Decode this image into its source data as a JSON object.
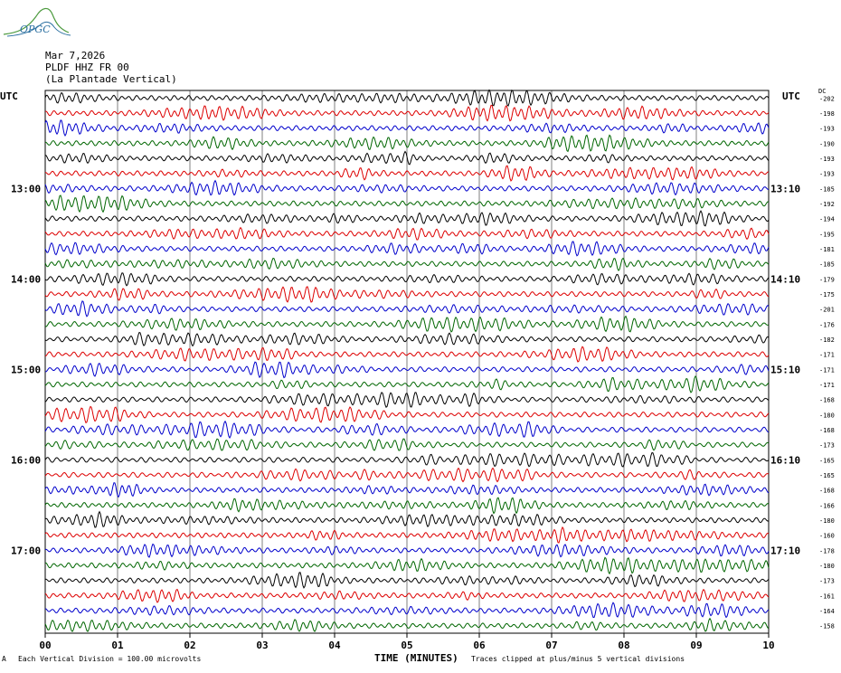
{
  "logo": {
    "text": "OPGC"
  },
  "header": {
    "date": "Mar 7,2026",
    "station": "PLDF HHZ FR 00",
    "location": "(La Plantade Vertical)"
  },
  "utc_left": "UTC",
  "utc_right": "UTC",
  "dc_label": "DC",
  "xlabel": "TIME (MINUTES)",
  "footer_left": "Each Vertical Division =  100.00 microvolts",
  "footer_right": "Traces clipped at plus/minus 5 vertical divisions",
  "footer_mark": "A",
  "colors": {
    "trace_cycle": [
      "#000000",
      "#dd0000",
      "#0000cc",
      "#006600"
    ],
    "grid": "#000000"
  },
  "chart_data": {
    "type": "line",
    "title": "PLDF HHZ FR 00 (La Plantade Vertical)",
    "xlabel": "TIME (MINUTES)",
    "x_ticks": [
      "00",
      "01",
      "02",
      "03",
      "04",
      "05",
      "06",
      "07",
      "08",
      "09",
      "10"
    ],
    "xlim": [
      0,
      10
    ],
    "grid": true,
    "trace_count": 36,
    "left_time_labels": [
      {
        "trace": 6,
        "label": "13:00"
      },
      {
        "trace": 12,
        "label": "14:00"
      },
      {
        "trace": 18,
        "label": "15:00"
      },
      {
        "trace": 24,
        "label": "16:00"
      },
      {
        "trace": 30,
        "label": "17:00"
      }
    ],
    "right_time_labels": [
      {
        "trace": 6,
        "label": "13:10"
      },
      {
        "trace": 12,
        "label": "14:10"
      },
      {
        "trace": 18,
        "label": "15:10"
      },
      {
        "trace": 24,
        "label": "16:10"
      },
      {
        "trace": 30,
        "label": "17:10"
      }
    ],
    "dc_offsets": [
      -202,
      -198,
      -193,
      -190,
      -193,
      -193,
      -185,
      -192,
      -194,
      -195,
      -181,
      -185,
      -179,
      -175,
      -201,
      -176,
      -182,
      -171,
      -171,
      -171,
      -168,
      -180,
      -168,
      -173,
      -165,
      -165,
      -168,
      -166,
      -180,
      -160,
      -178,
      -180,
      -173,
      -161,
      -164,
      -158
    ]
  }
}
